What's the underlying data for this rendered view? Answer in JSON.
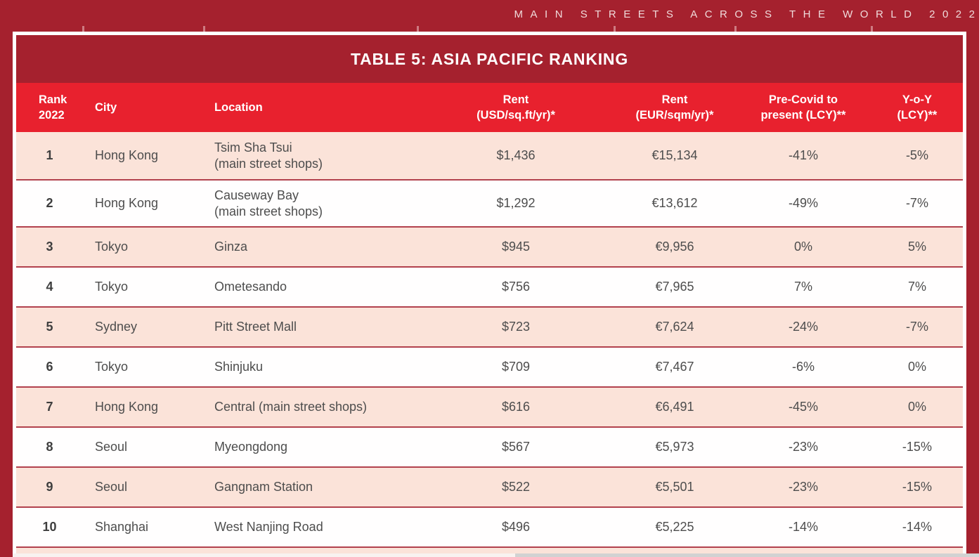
{
  "banner": {
    "text": "MAIN STREETS ACROSS THE WORLD 2022"
  },
  "colors": {
    "page_background": "#a5212e",
    "header_red": "#e8212e",
    "row_pink": "#fbe3d9",
    "row_white": "#fffefe",
    "separator": "#b2414d",
    "text_dark": "#4d4d4d",
    "banner_text": "#f0dbdb",
    "frame_border": "#ffffff"
  },
  "table": {
    "title": "TABLE 5: ASIA PACIFIC RANKING",
    "columns": [
      "Rank\n2022",
      "City",
      "Location",
      "Rent\n(USD/sq.ft/yr)*",
      "Rent\n(EUR/sqm/yr)*",
      "Pre-Covid to\npresent (LCY)**",
      "Y-o-Y\n(LCY)**"
    ],
    "rows": [
      {
        "rank": "1",
        "city": "Hong Kong",
        "location": "Tsim Sha Tsui\n(main street shops)",
        "rent_usd": "$1,436",
        "rent_eur": "€15,134",
        "pre_covid": "-41%",
        "yoy": "-5%"
      },
      {
        "rank": "2",
        "city": "Hong Kong",
        "location": "Causeway Bay\n(main street shops)",
        "rent_usd": "$1,292",
        "rent_eur": "€13,612",
        "pre_covid": "-49%",
        "yoy": "-7%"
      },
      {
        "rank": "3",
        "city": "Tokyo",
        "location": "Ginza",
        "rent_usd": "$945",
        "rent_eur": "€9,956",
        "pre_covid": "0%",
        "yoy": "5%"
      },
      {
        "rank": "4",
        "city": "Tokyo",
        "location": "Ometesando",
        "rent_usd": "$756",
        "rent_eur": "€7,965",
        "pre_covid": "7%",
        "yoy": "7%"
      },
      {
        "rank": "5",
        "city": "Sydney",
        "location": "Pitt Street Mall",
        "rent_usd": "$723",
        "rent_eur": "€7,624",
        "pre_covid": "-24%",
        "yoy": "-7%"
      },
      {
        "rank": "6",
        "city": "Tokyo",
        "location": "Shinjuku",
        "rent_usd": "$709",
        "rent_eur": "€7,467",
        "pre_covid": "-6%",
        "yoy": "0%"
      },
      {
        "rank": "7",
        "city": "Hong Kong",
        "location": "Central (main street shops)",
        "rent_usd": "$616",
        "rent_eur": "€6,491",
        "pre_covid": "-45%",
        "yoy": "0%"
      },
      {
        "rank": "8",
        "city": "Seoul",
        "location": "Myeongdong",
        "rent_usd": "$567",
        "rent_eur": "€5,973",
        "pre_covid": "-23%",
        "yoy": "-15%"
      },
      {
        "rank": "9",
        "city": "Seoul",
        "location": "Gangnam Station",
        "rent_usd": "$522",
        "rent_eur": "€5,501",
        "pre_covid": "-23%",
        "yoy": "-15%"
      },
      {
        "rank": "10",
        "city": "Shanghai",
        "location": "West Nanjing Road",
        "rent_usd": "$496",
        "rent_eur": "€5,225",
        "pre_covid": "-14%",
        "yoy": "-14%"
      }
    ]
  }
}
